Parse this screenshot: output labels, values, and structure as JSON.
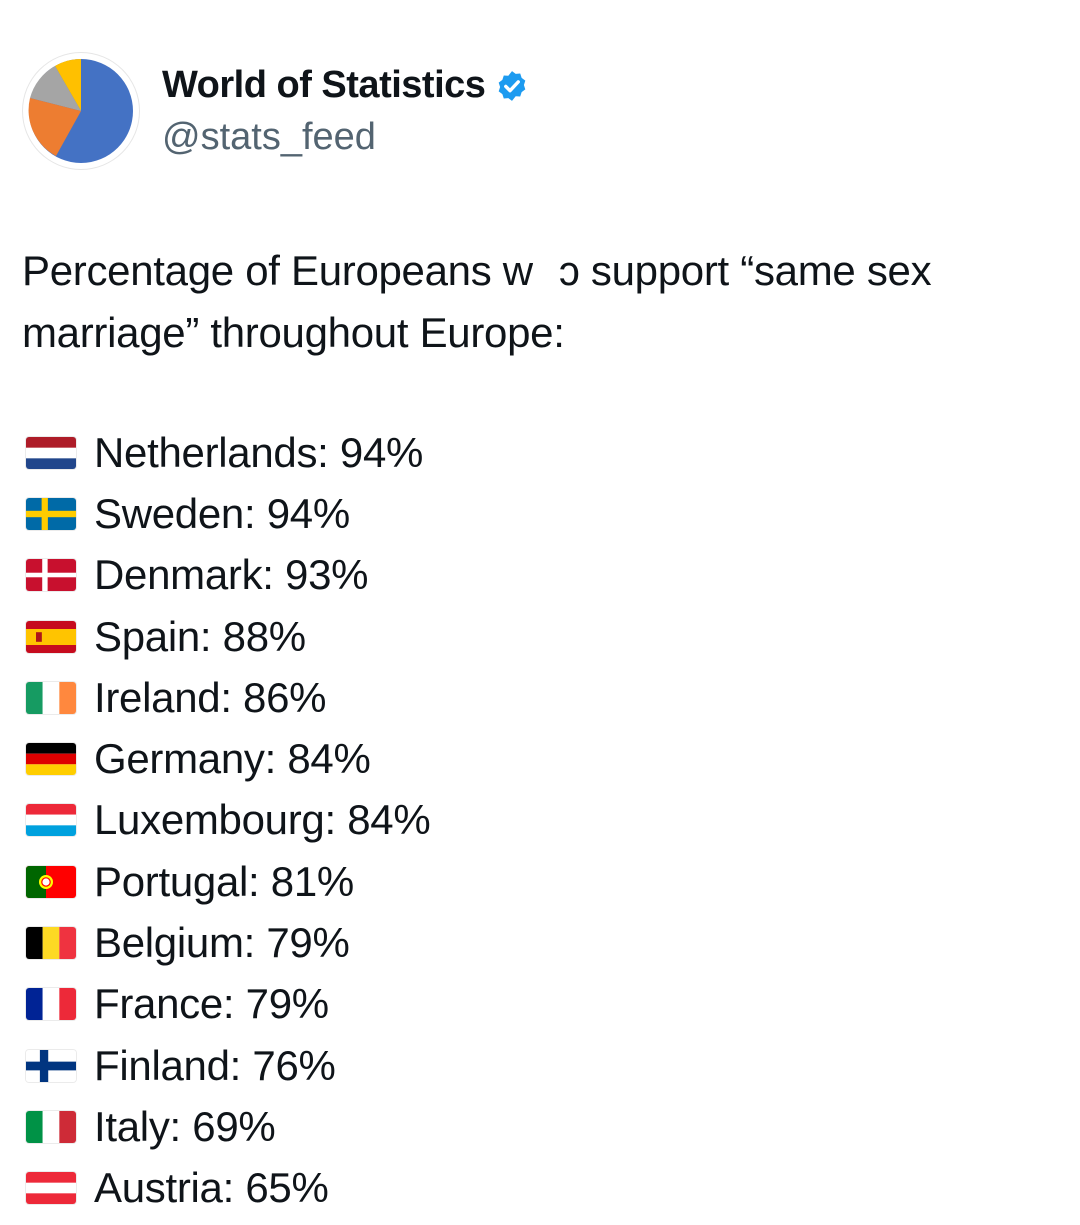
{
  "account": {
    "display_name": "World of Statistics",
    "handle": "@stats_feed",
    "verified": true,
    "avatar_icon": "pie-chart-icon"
  },
  "tweet": {
    "text_part1": "Percentage of Europeans w",
    "text_part2": "ɔ support “same sex marriage” throughout Europe:"
  },
  "countries": [
    {
      "flag": "netherlands-flag-icon",
      "label": "Netherlands: 94%"
    },
    {
      "flag": "sweden-flag-icon",
      "label": "Sweden: 94%"
    },
    {
      "flag": "denmark-flag-icon",
      "label": "Denmark: 93%"
    },
    {
      "flag": "spain-flag-icon",
      "label": "Spain: 88%"
    },
    {
      "flag": "ireland-flag-icon",
      "label": "Ireland: 86%"
    },
    {
      "flag": "germany-flag-icon",
      "label": "Germany: 84%"
    },
    {
      "flag": "luxembourg-flag-icon",
      "label": "Luxembourg: 84%"
    },
    {
      "flag": "portugal-flag-icon",
      "label": "Portugal: 81%"
    },
    {
      "flag": "belgium-flag-icon",
      "label": "Belgium: 79%"
    },
    {
      "flag": "france-flag-icon",
      "label": "France: 79%"
    },
    {
      "flag": "finland-flag-icon",
      "label": "Finland: 76%"
    },
    {
      "flag": "italy-flag-icon",
      "label": "Italy: 69%"
    },
    {
      "flag": "austria-flag-icon",
      "label": "Austria: 65%"
    }
  ],
  "colors": {
    "text": "#0f1419",
    "secondary_text": "#536471",
    "verified_blue": "#1d9bf0",
    "pie_blue": "#4472c4",
    "pie_orange": "#ed7d31",
    "pie_gray": "#a5a5a5",
    "pie_yellow": "#ffc000"
  }
}
